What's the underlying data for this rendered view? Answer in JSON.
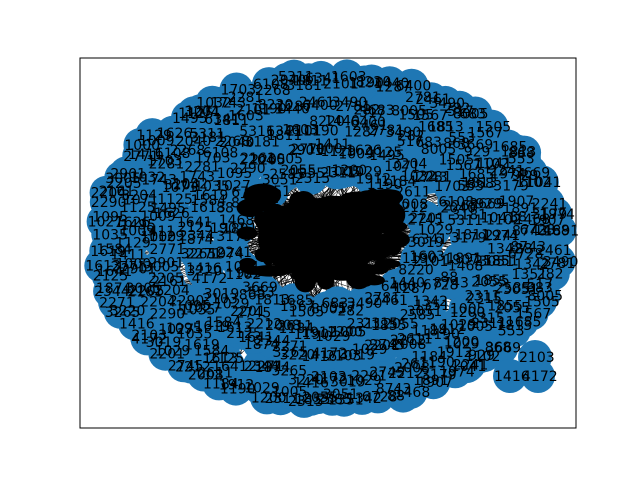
{
  "figure": {
    "type": "network-graph",
    "node_color": "#1f77b4",
    "edge_color": "#000000",
    "label_color": "#000000",
    "background": "#ffffff",
    "frame": true
  },
  "nodes": {
    "labels": [
      "2461",
      "2781",
      "3490",
      "282",
      "517",
      "683",
      "8005",
      "1505",
      "1567",
      "1685",
      "1813",
      "553",
      "868",
      "3669",
      "929",
      "1102",
      "1041",
      "2241",
      "1974",
      "3179",
      "1907",
      "1891",
      "1468",
      "88",
      "8743",
      "6728",
      "1342",
      "1351",
      "3051",
      "2585",
      "2055",
      "1855",
      "2315",
      "2311",
      "1005",
      "1200",
      "1029",
      "1912",
      "1190",
      "1184",
      "2611",
      "2008",
      "2212",
      "2745",
      "2201",
      "1029",
      "3019",
      "2103",
      "4172",
      "1416",
      "3220",
      "3265",
      "2271",
      "1874",
      "2344",
      "1641",
      "2125",
      "1613",
      "1584",
      "1619",
      "1035",
      "1027",
      "1095",
      "2290",
      "2204",
      "2161",
      "2205",
      "3005",
      "2901",
      "2771",
      "1000",
      "1411",
      "1129",
      "1009",
      "1626",
      "1495",
      "1125",
      "1071",
      "3204",
      "1032",
      "1743",
      "2281",
      "1703",
      "6108",
      "2268",
      "2040",
      "3181",
      "5311",
      "1811",
      "6341",
      "1603",
      "2101",
      "1190",
      "8220",
      "1440",
      "1287",
      "6400"
    ]
  }
}
